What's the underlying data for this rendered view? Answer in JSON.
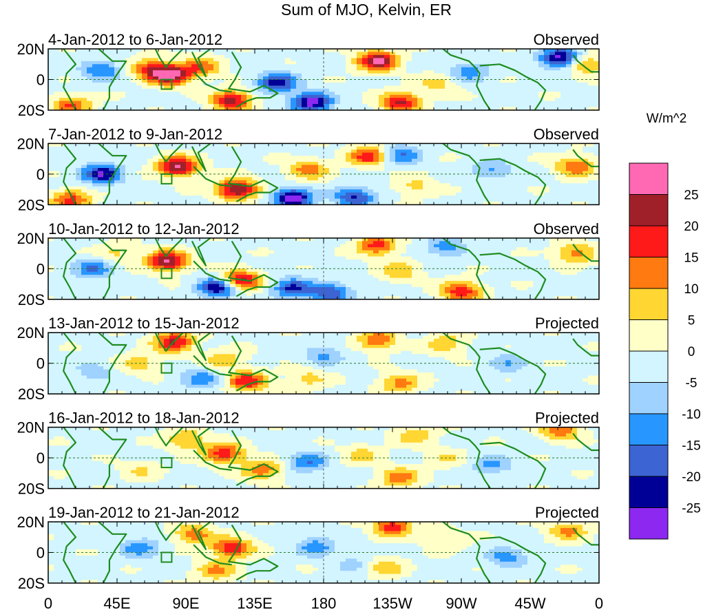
{
  "chart_data": {
    "type": "heatmap",
    "title": "Sum of MJO, Kelvin, ER",
    "x_ticks": [
      "0",
      "45E",
      "90E",
      "135E",
      "180",
      "135W",
      "90W",
      "45W",
      "0"
    ],
    "x_tick_values": [
      0,
      45,
      90,
      135,
      180,
      225,
      270,
      315,
      360
    ],
    "y_ticks": [
      "20N",
      "0",
      "20S"
    ],
    "y_tick_values": [
      20,
      0,
      -20
    ],
    "xlim": [
      0,
      360
    ],
    "ylim": [
      -20,
      20
    ],
    "colorbar": {
      "units": "W/m^2",
      "labels": [
        "25",
        "20",
        "15",
        "10",
        "5",
        "0",
        "-5",
        "-10",
        "-15",
        "-20",
        "-25"
      ],
      "levels": [
        25,
        20,
        15,
        10,
        5,
        0,
        -5,
        -10,
        -15,
        -20,
        -25
      ],
      "colors": [
        "#ff69b4",
        "#a0202a",
        "#ff1a1a",
        "#ff7a10",
        "#ffd632",
        "#ffffc8",
        "#d2f5ff",
        "#a0d2ff",
        "#2896ff",
        "#3c64d2",
        "#000096",
        "#8c28f0"
      ]
    },
    "panels": [
      {
        "date_label": "4-Jan-2012 to 6-Jan-2012",
        "status": "Observed",
        "anomalies": [
          {
            "lon": 80,
            "lat": 3,
            "value": 28
          },
          {
            "lon": 66,
            "lat": 7,
            "value": 16
          },
          {
            "lon": 120,
            "lat": -14,
            "value": 24
          },
          {
            "lon": 100,
            "lat": 8,
            "value": 14
          },
          {
            "lon": 215,
            "lat": 12,
            "value": 27
          },
          {
            "lon": 335,
            "lat": 14,
            "value": -27
          },
          {
            "lon": 172,
            "lat": -15,
            "value": -27
          },
          {
            "lon": 150,
            "lat": -2,
            "value": -22
          },
          {
            "lon": 230,
            "lat": -15,
            "value": 22
          },
          {
            "lon": 35,
            "lat": 6,
            "value": -14
          },
          {
            "lon": 15,
            "lat": -17,
            "value": 16
          },
          {
            "lon": 275,
            "lat": 5,
            "value": -12
          },
          {
            "lon": 350,
            "lat": 10,
            "value": 14
          },
          {
            "lon": 255,
            "lat": -3,
            "value": 8
          }
        ]
      },
      {
        "date_label": "7-Jan-2012 to 9-Jan-2012",
        "status": "Observed",
        "anomalies": [
          {
            "lon": 85,
            "lat": 5,
            "value": 27
          },
          {
            "lon": 123,
            "lat": -10,
            "value": 28
          },
          {
            "lon": 160,
            "lat": -16,
            "value": -27
          },
          {
            "lon": 200,
            "lat": -15,
            "value": -20
          },
          {
            "lon": 35,
            "lat": 0,
            "value": -24
          },
          {
            "lon": 15,
            "lat": -17,
            "value": 18
          },
          {
            "lon": 210,
            "lat": 12,
            "value": 20
          },
          {
            "lon": 230,
            "lat": 13,
            "value": -15
          },
          {
            "lon": 345,
            "lat": 5,
            "value": 16
          },
          {
            "lon": 290,
            "lat": 3,
            "value": -10
          },
          {
            "lon": 240,
            "lat": -8,
            "value": 8
          },
          {
            "lon": 170,
            "lat": 3,
            "value": 14
          }
        ]
      },
      {
        "date_label": "10-Jan-2012 to 12-Jan-2012",
        "status": "Observed",
        "anomalies": [
          {
            "lon": 78,
            "lat": 5,
            "value": 27
          },
          {
            "lon": 125,
            "lat": -8,
            "value": 27
          },
          {
            "lon": 112,
            "lat": -12,
            "value": -27
          },
          {
            "lon": 160,
            "lat": -13,
            "value": -20
          },
          {
            "lon": 185,
            "lat": -16,
            "value": -18
          },
          {
            "lon": 270,
            "lat": -15,
            "value": 20
          },
          {
            "lon": 215,
            "lat": 15,
            "value": 18
          },
          {
            "lon": 260,
            "lat": 14,
            "value": -12
          },
          {
            "lon": 345,
            "lat": 10,
            "value": 14
          },
          {
            "lon": 30,
            "lat": 0,
            "value": -14
          },
          {
            "lon": 230,
            "lat": -2,
            "value": 10
          },
          {
            "lon": 45,
            "lat": 10,
            "value": 8
          }
        ]
      },
      {
        "date_label": "13-Jan-2012 to 15-Jan-2012",
        "status": "Projected",
        "anomalies": [
          {
            "lon": 82,
            "lat": 14,
            "value": 22
          },
          {
            "lon": 130,
            "lat": -12,
            "value": 20
          },
          {
            "lon": 115,
            "lat": 2,
            "value": 10
          },
          {
            "lon": 60,
            "lat": 0,
            "value": 9
          },
          {
            "lon": 215,
            "lat": 15,
            "value": 15
          },
          {
            "lon": 230,
            "lat": -13,
            "value": 13
          },
          {
            "lon": 260,
            "lat": 13,
            "value": 10
          },
          {
            "lon": 100,
            "lat": -10,
            "value": -12
          },
          {
            "lon": 180,
            "lat": 5,
            "value": -10
          },
          {
            "lon": 300,
            "lat": 0,
            "value": -8
          },
          {
            "lon": 170,
            "lat": -10,
            "value": 8
          },
          {
            "lon": 30,
            "lat": -5,
            "value": -7
          }
        ]
      },
      {
        "date_label": "16-Jan-2012 to 18-Jan-2012",
        "status": "Projected",
        "anomalies": [
          {
            "lon": 115,
            "lat": 3,
            "value": 20
          },
          {
            "lon": 140,
            "lat": -8,
            "value": 15
          },
          {
            "lon": 90,
            "lat": 12,
            "value": 12
          },
          {
            "lon": 170,
            "lat": -3,
            "value": -14
          },
          {
            "lon": 230,
            "lat": -13,
            "value": 14
          },
          {
            "lon": 240,
            "lat": 15,
            "value": 10
          },
          {
            "lon": 335,
            "lat": 18,
            "value": 15
          },
          {
            "lon": 290,
            "lat": -5,
            "value": -10
          },
          {
            "lon": 60,
            "lat": -8,
            "value": 6
          },
          {
            "lon": 205,
            "lat": 2,
            "value": 8
          },
          {
            "lon": 260,
            "lat": 0,
            "value": 6
          }
        ]
      },
      {
        "date_label": "19-Jan-2012 to 21-Jan-2012",
        "status": "Projected",
        "anomalies": [
          {
            "lon": 120,
            "lat": 3,
            "value": 21
          },
          {
            "lon": 95,
            "lat": 12,
            "value": 14
          },
          {
            "lon": 110,
            "lat": -12,
            "value": 12
          },
          {
            "lon": 60,
            "lat": 3,
            "value": -12
          },
          {
            "lon": 175,
            "lat": 4,
            "value": -12
          },
          {
            "lon": 225,
            "lat": 17,
            "value": 20
          },
          {
            "lon": 220,
            "lat": -10,
            "value": 10
          },
          {
            "lon": 300,
            "lat": -3,
            "value": -12
          },
          {
            "lon": 340,
            "lat": 14,
            "value": 12
          },
          {
            "lon": 260,
            "lat": 8,
            "value": 6
          },
          {
            "lon": 200,
            "lat": -8,
            "value": -6
          }
        ]
      }
    ]
  }
}
